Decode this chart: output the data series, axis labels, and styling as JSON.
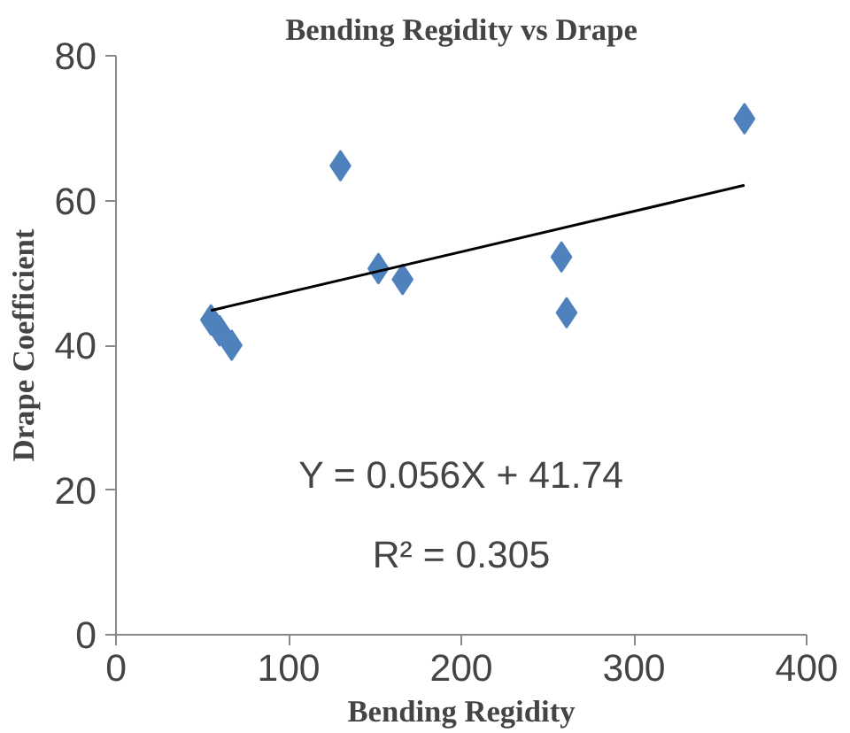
{
  "chart_data": {
    "type": "scatter",
    "title": "Bending Regidity vs Drape",
    "xlabel": "Bending Regidity",
    "ylabel": "Drape Coefficient",
    "xlim": [
      0,
      400
    ],
    "ylim": [
      0,
      80
    ],
    "xticks": [
      0,
      100,
      200,
      300,
      400
    ],
    "yticks": [
      0,
      20,
      40,
      60,
      80
    ],
    "grid": false,
    "series": [
      {
        "marker": "diamond",
        "color": "#4f81bd",
        "x": [
          55,
          60,
          67,
          130,
          152,
          166,
          258,
          261,
          364
        ],
        "values": [
          43.5,
          42,
          40,
          64.8,
          50.6,
          49.1,
          52.2,
          44.5,
          71.3
        ]
      },
      {
        "type": "line",
        "color": "#000000",
        "x": [
          55,
          364
        ],
        "values": [
          44.8,
          62.1
        ]
      }
    ],
    "annotations": [
      {
        "text": "Y = 0.056X + 41.74"
      },
      {
        "text": "R² = 0.305"
      }
    ]
  }
}
